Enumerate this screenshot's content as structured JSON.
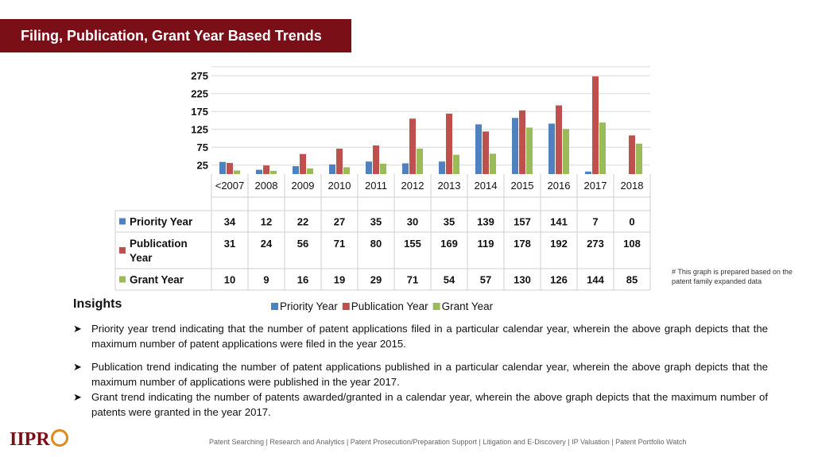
{
  "header": {
    "title": "Filing, Publication, Grant Year Based Trends"
  },
  "chart_data": {
    "type": "bar",
    "categories": [
      "<2007",
      "2008",
      "2009",
      "2010",
      "2011",
      "2012",
      "2013",
      "2014",
      "2015",
      "2016",
      "2017",
      "2018"
    ],
    "series": [
      {
        "name": "Priority Year",
        "color": "#4f81bd",
        "values": [
          34,
          12,
          22,
          27,
          35,
          30,
          35,
          139,
          157,
          141,
          7,
          0
        ]
      },
      {
        "name": "Publication Year",
        "color": "#c0504d",
        "values": [
          31,
          24,
          56,
          71,
          80,
          155,
          169,
          119,
          178,
          192,
          273,
          108
        ]
      },
      {
        "name": "Grant Year",
        "color": "#9bbb59",
        "values": [
          10,
          9,
          16,
          19,
          29,
          71,
          54,
          57,
          130,
          126,
          144,
          85
        ]
      }
    ],
    "yticks": [
      25,
      75,
      125,
      175,
      225,
      275
    ],
    "ylim": [
      0,
      300
    ],
    "grid": true,
    "data_table": true,
    "legend_position": "bottom"
  },
  "note": "# This graph is prepared based on the patent family expanded data",
  "insights": {
    "heading": "Insights",
    "bullets": [
      "Priority year trend indicating that the number of patent applications filed in a particular calendar year, wherein the above graph depicts that the maximum number of patent applications were filed in the year 2015.",
      "Publication trend indicating the number of patent applications published in a particular calendar year, wherein the above graph depicts that the maximum number of applications were published in the year 2017.",
      "Grant trend indicating the number of patents awarded/granted in a calendar year, wherein the above graph depicts that the maximum number of patents were granted in the year 2017."
    ]
  },
  "logo": {
    "text": "IIPR"
  },
  "footer": "Patent Searching | Research and Analytics | Patent Prosecution/Preparation Support | Litigation and E-Discovery | IP Valuation | Patent Portfolio Watch"
}
